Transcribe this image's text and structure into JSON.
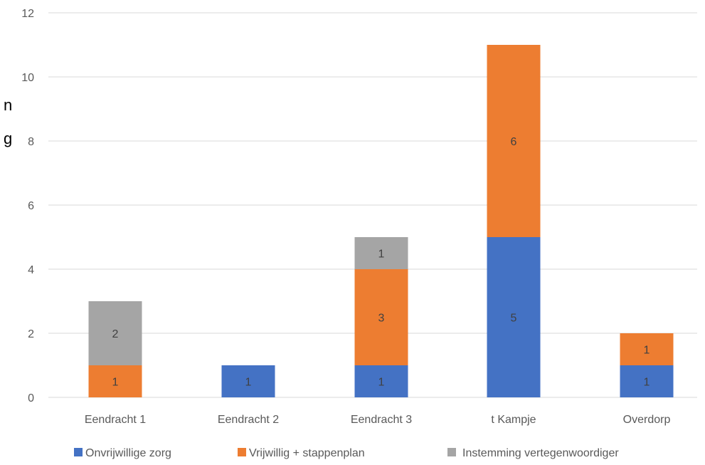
{
  "chart_data": {
    "type": "bar",
    "stacked": true,
    "categories": [
      "Eendracht 1",
      "Eendracht 2",
      "Eendracht 3",
      "t Kampje",
      "Overdorp"
    ],
    "series": [
      {
        "name": "Onvrijwillige zorg",
        "color": "#4472C4",
        "values": [
          0,
          1,
          1,
          5,
          1
        ]
      },
      {
        "name": "Vrijwillig + stappenplan",
        "color": "#ED7D31",
        "values": [
          1,
          0,
          3,
          6,
          1
        ]
      },
      {
        "name": "Instemming vertegenwoordiger",
        "color": "#A5A5A5",
        "values": [
          2,
          0,
          1,
          0,
          0
        ]
      }
    ],
    "title": "",
    "xlabel": "",
    "ylabel": "",
    "ylim": [
      0,
      12
    ],
    "yticks": [
      0,
      2,
      4,
      6,
      8,
      10,
      12
    ],
    "grid": true,
    "legend": "bottom",
    "data_labels": true
  },
  "left_edge_glyphs": [
    "n",
    "g"
  ]
}
